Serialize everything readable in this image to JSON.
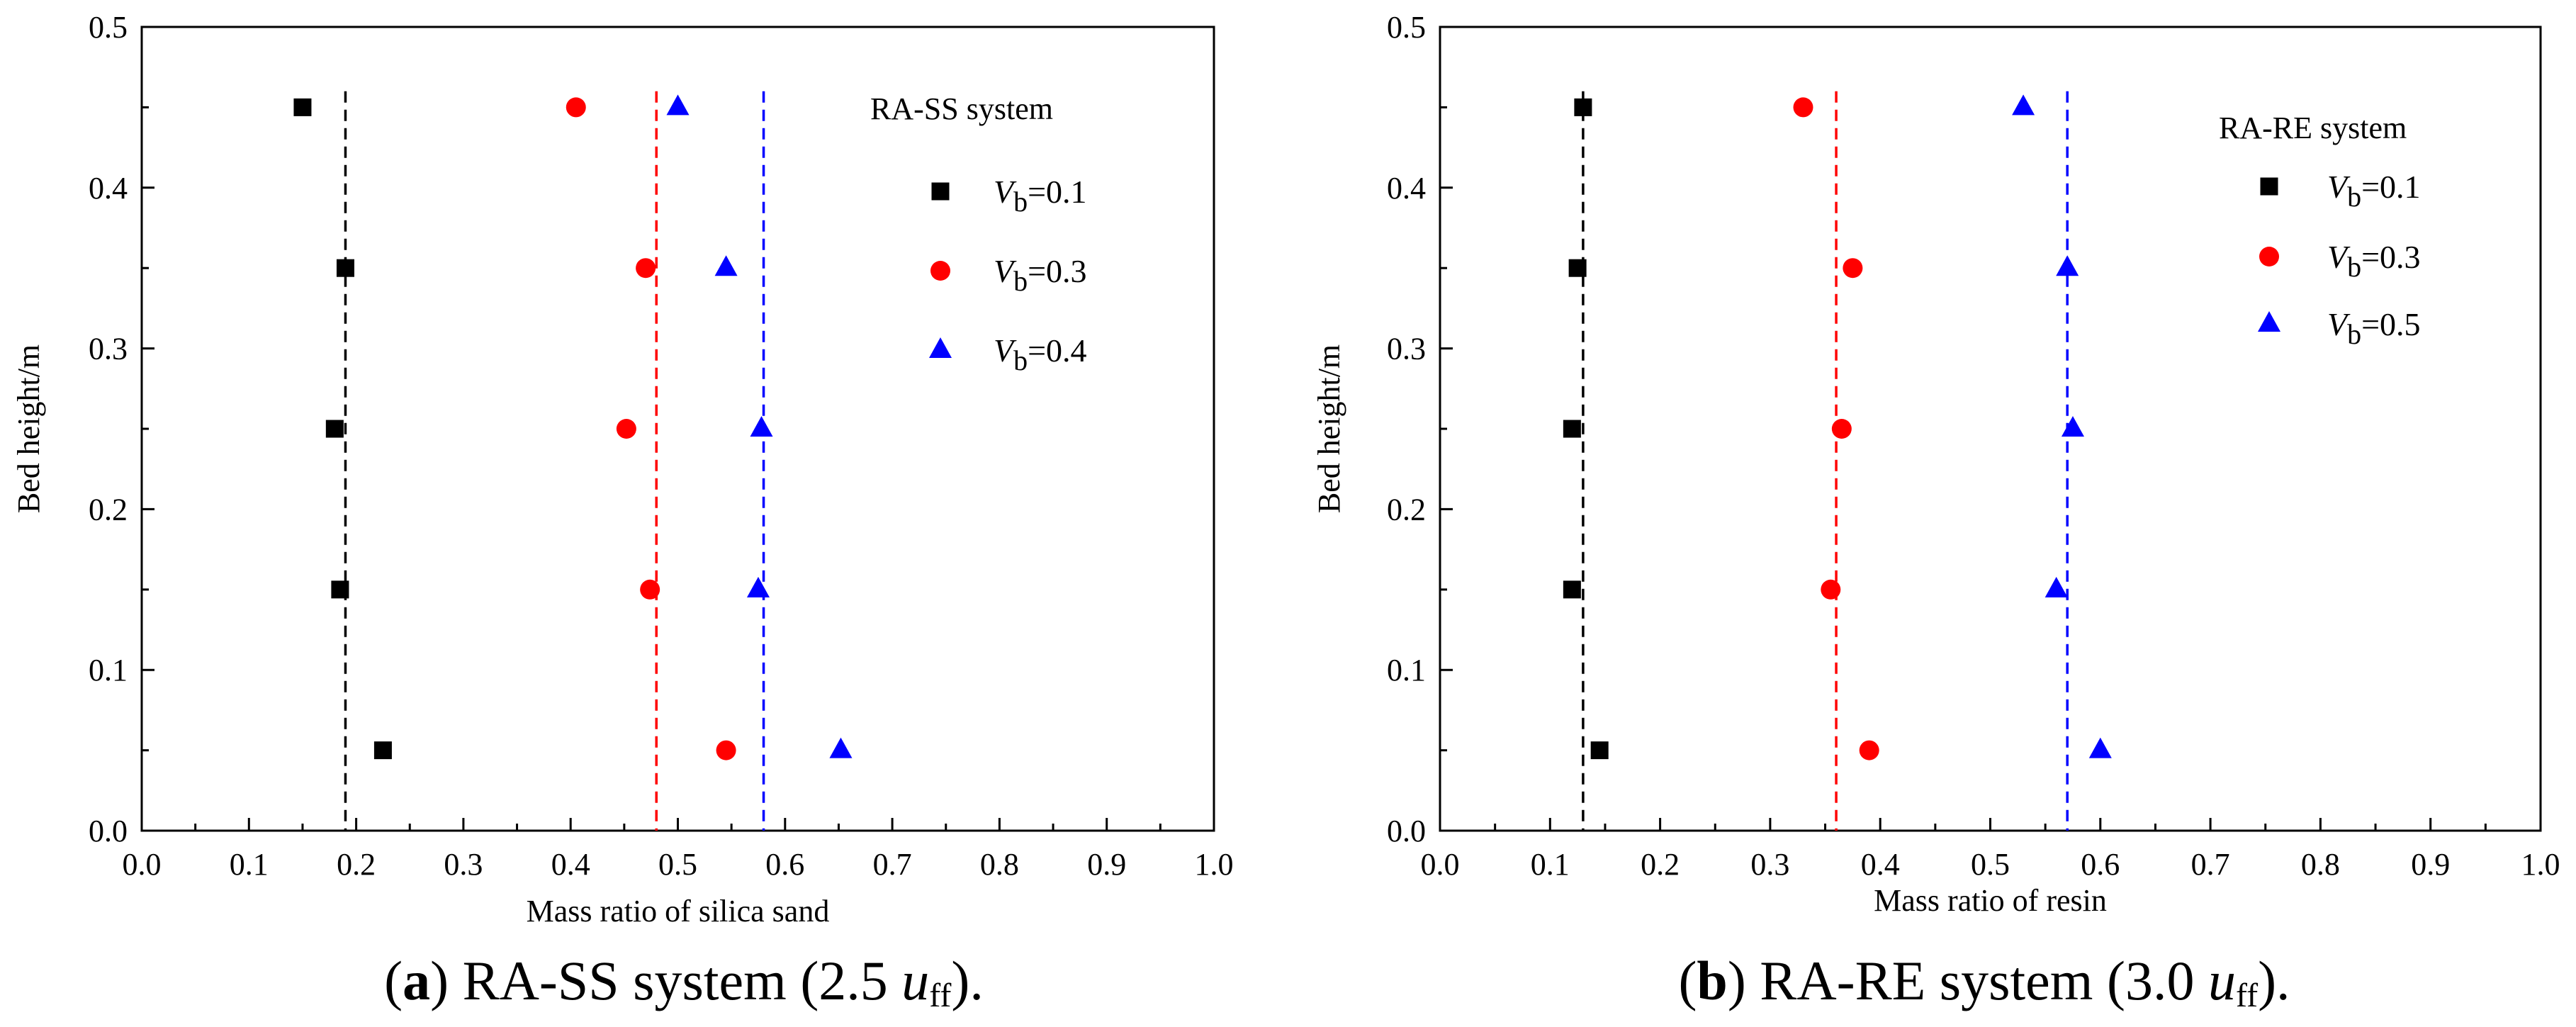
{
  "chart_data": [
    {
      "type": "scatter",
      "panel": "a",
      "caption": {
        "letter": "a",
        "text": " RA-SS system (2.5 ",
        "u": "u",
        "sub": "ff",
        "end": ")."
      },
      "xlabel": "Mass ratio of silica sand",
      "ylabel": "Bed height/m",
      "xlim": [
        0.0,
        1.0
      ],
      "ylim": [
        0.0,
        0.5
      ],
      "xticks": [
        "0.0",
        "0.1",
        "0.2",
        "0.3",
        "0.4",
        "0.5",
        "0.6",
        "0.7",
        "0.8",
        "0.9",
        "1.0"
      ],
      "yticks": [
        "0.0",
        "0.1",
        "0.2",
        "0.3",
        "0.4",
        "0.5"
      ],
      "legend_title": "RA-SS system",
      "legend_position": "top-right",
      "series": [
        {
          "name": "Vb=0.1",
          "label_v": "V",
          "label_sub": "b",
          "label_val": "=0.1",
          "marker": "square",
          "color": "#000000",
          "mean_line": 0.19,
          "points": [
            [
              0.15,
              0.45
            ],
            [
              0.19,
              0.35
            ],
            [
              0.18,
              0.25
            ],
            [
              0.185,
              0.15
            ],
            [
              0.225,
              0.05
            ]
          ]
        },
        {
          "name": "Vb=0.3",
          "label_v": "V",
          "label_sub": "b",
          "label_val": "=0.3",
          "marker": "circle",
          "color": "#ff0000",
          "mean_line": 0.48,
          "points": [
            [
              0.405,
              0.45
            ],
            [
              0.47,
              0.35
            ],
            [
              0.452,
              0.25
            ],
            [
              0.474,
              0.15
            ],
            [
              0.545,
              0.05
            ]
          ]
        },
        {
          "name": "Vb=0.4",
          "label_v": "V",
          "label_sub": "b",
          "label_val": "=0.4",
          "marker": "triangle",
          "color": "#0000ff",
          "mean_line": 0.58,
          "points": [
            [
              0.5,
              0.45
            ],
            [
              0.545,
              0.35
            ],
            [
              0.578,
              0.25
            ],
            [
              0.575,
              0.15
            ],
            [
              0.652,
              0.05
            ]
          ]
        }
      ]
    },
    {
      "type": "scatter",
      "panel": "b",
      "caption": {
        "letter": "b",
        "text": " RA-RE system (3.0 ",
        "u": "u",
        "sub": "ff",
        "end": ")."
      },
      "xlabel": "Mass ratio of resin",
      "ylabel": "Bed height/m",
      "xlim": [
        0.0,
        1.0
      ],
      "ylim": [
        0.0,
        0.5
      ],
      "xticks": [
        "0.0",
        "0.1",
        "0.2",
        "0.3",
        "0.4",
        "0.5",
        "0.6",
        "0.7",
        "0.8",
        "0.9",
        "1.0"
      ],
      "yticks": [
        "0.0",
        "0.1",
        "0.2",
        "0.3",
        "0.4",
        "0.5"
      ],
      "legend_title": "RA-RE system",
      "legend_position": "top-right",
      "series": [
        {
          "name": "Vb=0.1",
          "label_v": "V",
          "label_sub": "b",
          "label_val": "=0.1",
          "marker": "square",
          "color": "#000000",
          "mean_line": 0.13,
          "points": [
            [
              0.13,
              0.45
            ],
            [
              0.125,
              0.35
            ],
            [
              0.12,
              0.25
            ],
            [
              0.12,
              0.15
            ],
            [
              0.145,
              0.05
            ]
          ]
        },
        {
          "name": "Vb=0.3",
          "label_v": "V",
          "label_sub": "b",
          "label_val": "=0.3",
          "marker": "circle",
          "color": "#ff0000",
          "mean_line": 0.36,
          "points": [
            [
              0.33,
              0.45
            ],
            [
              0.375,
              0.35
            ],
            [
              0.365,
              0.25
            ],
            [
              0.355,
              0.15
            ],
            [
              0.39,
              0.05
            ]
          ]
        },
        {
          "name": "Vb=0.5",
          "label_v": "V",
          "label_sub": "b",
          "label_val": "=0.5",
          "marker": "triangle",
          "color": "#0000ff",
          "mean_line": 0.57,
          "points": [
            [
              0.53,
              0.45
            ],
            [
              0.57,
              0.35
            ],
            [
              0.575,
              0.25
            ],
            [
              0.56,
              0.15
            ],
            [
              0.6,
              0.05
            ]
          ]
        }
      ]
    }
  ]
}
